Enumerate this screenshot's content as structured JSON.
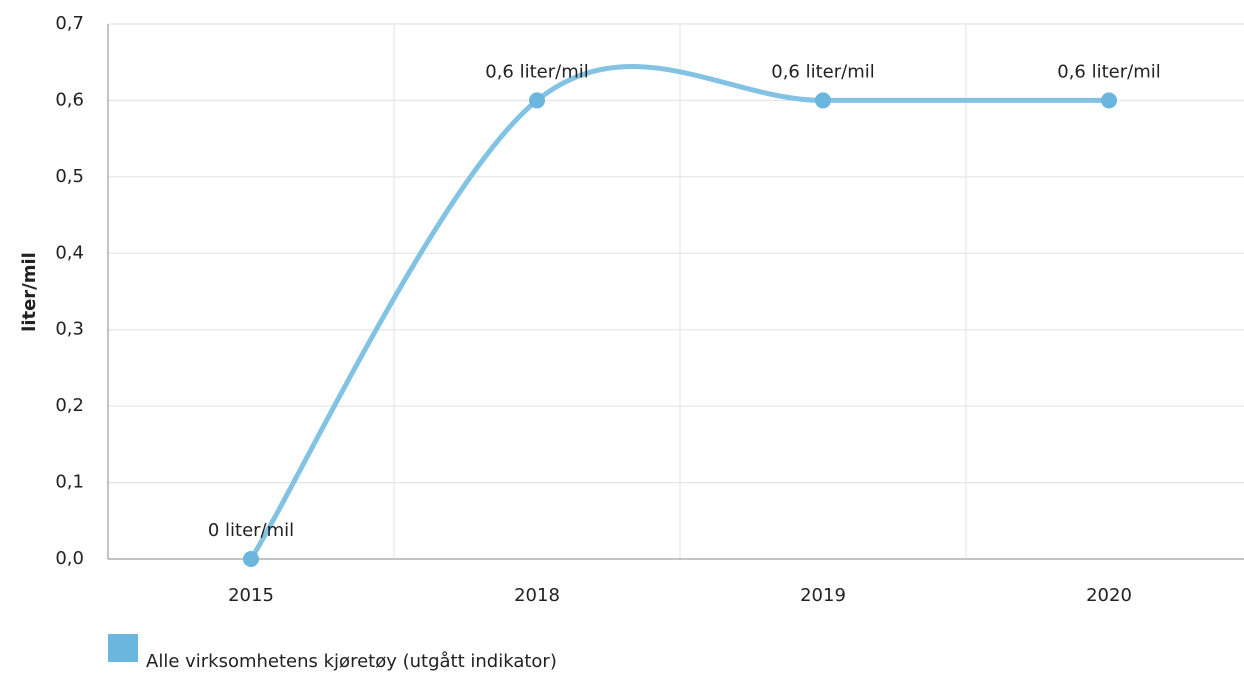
{
  "chart_data": {
    "type": "line",
    "y_label": "liter/mil",
    "categories": [
      "2015",
      "2018",
      "2019",
      "2020"
    ],
    "series": [
      {
        "name": "Alle virksomhetens kjøretøy (utgått indikator)",
        "color": "#6bb6dd",
        "values": [
          0,
          0.6,
          0.6,
          0.6
        ],
        "value_labels": [
          "0 liter/mil",
          "0,6 liter/mil",
          "0,6 liter/mil",
          "0,6 liter/mil"
        ]
      }
    ],
    "ylim": [
      0,
      0.7
    ],
    "yticks": [
      {
        "value": 0,
        "label": "0,0"
      },
      {
        "value": 0.1,
        "label": "0,1"
      },
      {
        "value": 0.2,
        "label": "0,2"
      },
      {
        "value": 0.3,
        "label": "0,3"
      },
      {
        "value": 0.4,
        "label": "0,4"
      },
      {
        "value": 0.5,
        "label": "0,5"
      },
      {
        "value": 0.6,
        "label": "0,6"
      },
      {
        "value": 0.7,
        "label": "0,7"
      }
    ],
    "grid": true
  }
}
